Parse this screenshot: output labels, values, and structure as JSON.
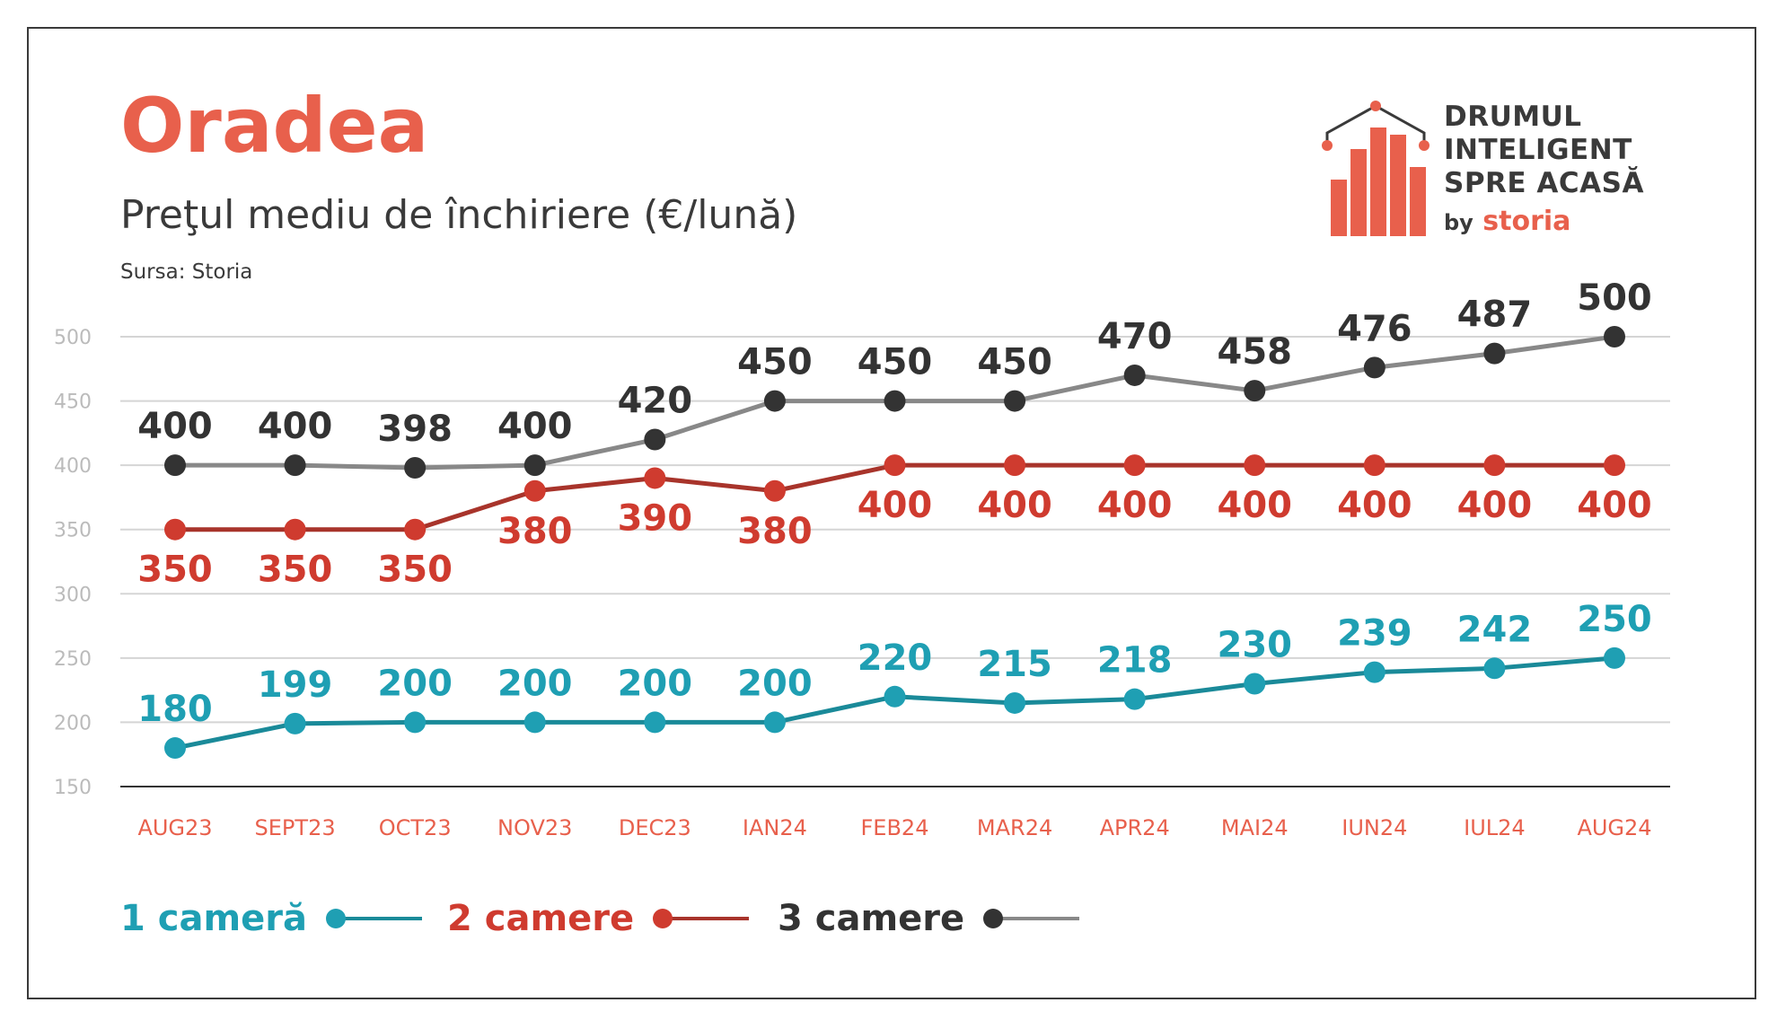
{
  "header": {
    "title": "Oradea",
    "subtitle": "Preţul mediu de închiriere (€/lună)",
    "source": "Sursa: Storia"
  },
  "logo": {
    "lines": [
      "DRUMUL",
      "INTELIGENT",
      "SPRE ACASĂ"
    ],
    "by": "by",
    "brand": "storia"
  },
  "colors": {
    "title": "#e8604c",
    "axis_labels": "#e8604c",
    "one_room": "#1f9fb3",
    "one_room_line": "#1a8a99",
    "two_rooms": "#cf3b2f",
    "two_rooms_line": "#a8342b",
    "three_rooms": "#333333",
    "three_rooms_line": "#888888",
    "grid": "#d5d5d5",
    "tick": "#bbbbbb"
  },
  "chart_data": {
    "type": "line",
    "categories": [
      "AUG23",
      "SEPT23",
      "OCT23",
      "NOV23",
      "DEC23",
      "IAN24",
      "FEB24",
      "MAR24",
      "APR24",
      "MAI24",
      "IUN24",
      "IUL24",
      "AUG24"
    ],
    "yticks": [
      150,
      200,
      250,
      300,
      350,
      400,
      450,
      500
    ],
    "ylim": [
      150,
      500
    ],
    "grid": true,
    "legend_position": "bottom-left",
    "series": [
      {
        "name": "1 cameră",
        "key": "one_room",
        "values": [
          180,
          199,
          200,
          200,
          200,
          200,
          220,
          215,
          218,
          230,
          239,
          242,
          250
        ]
      },
      {
        "name": "2 camere",
        "key": "two_rooms",
        "values": [
          350,
          350,
          350,
          380,
          390,
          380,
          400,
          400,
          400,
          400,
          400,
          400,
          400
        ]
      },
      {
        "name": "3 camere",
        "key": "three_rooms",
        "values": [
          400,
          400,
          398,
          400,
          420,
          450,
          450,
          450,
          470,
          458,
          476,
          487,
          500
        ]
      }
    ]
  }
}
